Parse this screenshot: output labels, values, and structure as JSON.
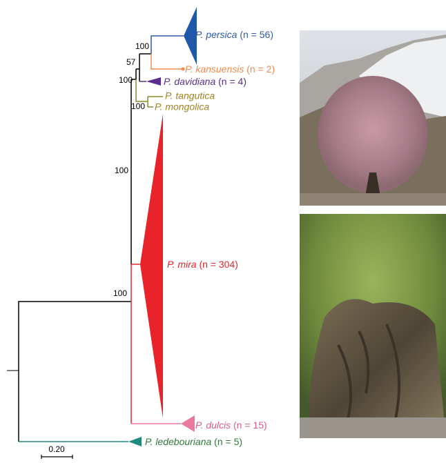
{
  "taxa": [
    {
      "name": "P. persica",
      "count": "(n = 56)"
    },
    {
      "name": "P. kansuensis",
      "count": "(n = 2)"
    },
    {
      "name": "P. davidiana",
      "count": "(n = 4)"
    },
    {
      "name": "P. tangutica"
    },
    {
      "name": "P. mongolica"
    },
    {
      "name": "P. mira",
      "count": "(n = 304)"
    },
    {
      "name": "P. dulcis",
      "count": "(n = 15)"
    },
    {
      "name": "P. ledebouriana",
      "count": "(n = 5)"
    }
  ],
  "support": [
    100,
    57,
    100,
    100,
    100,
    100
  ],
  "scale_bar": "0.20"
}
